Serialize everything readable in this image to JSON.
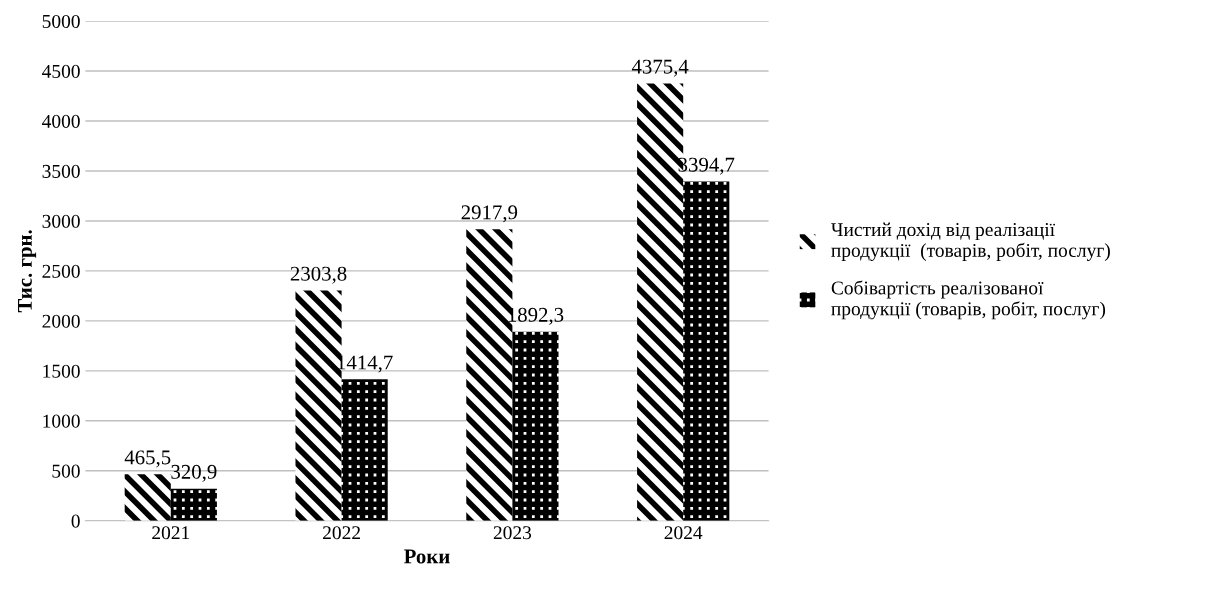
{
  "chart_data": {
    "type": "bar",
    "xlabel": "Роки",
    "ylabel": "Тис. грн.",
    "categories": [
      "2021",
      "2022",
      "2023",
      "2024"
    ],
    "series": [
      {
        "name": "Чистий дохід від реалізації продукції  (товарів, робіт, послуг)",
        "color": "#000000",
        "values": [
          465.5,
          2303.8,
          2917.9,
          4375.4
        ],
        "value_labels": [
          "465,5",
          "2303,8",
          "2917,9",
          "4375,4"
        ]
      },
      {
        "name": "Собівартість реалізованої продукції (товарів, робіт, послуг)",
        "color": "#000000",
        "values": [
          320.9,
          1414.7,
          1892.3,
          3394.7
        ],
        "value_labels": [
          "320,9",
          "1414,7",
          "1892,3",
          "3394,7"
        ]
      }
    ],
    "ylim": [
      0,
      5000
    ],
    "yticks": [
      0,
      500,
      1000,
      1500,
      2000,
      2500,
      3000,
      3500,
      4000,
      4500,
      5000
    ],
    "grid": "y",
    "legend": "right"
  }
}
